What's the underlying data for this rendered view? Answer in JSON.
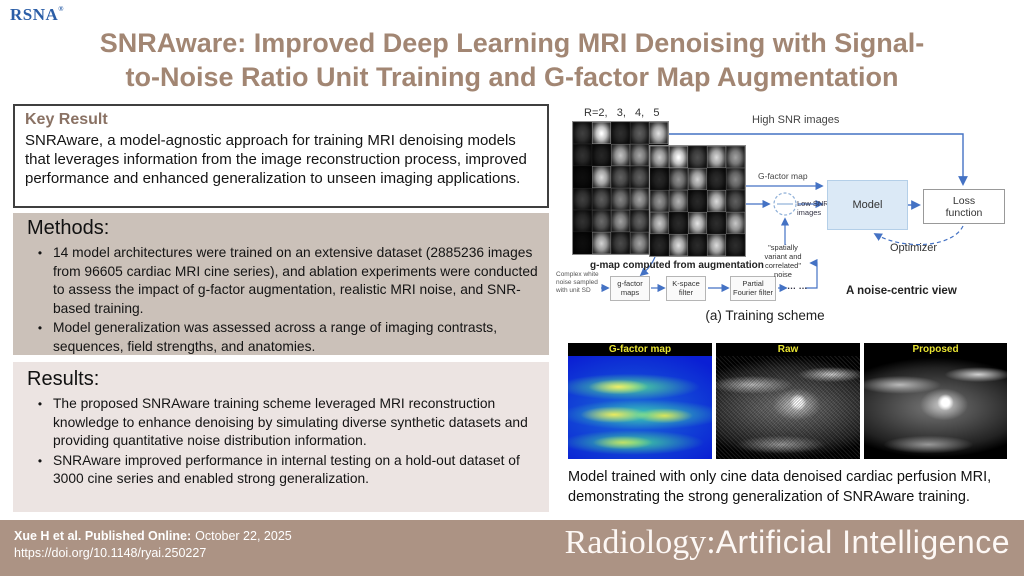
{
  "header": {
    "logo_text": "RSNA",
    "logo_reg": "®",
    "title_lines": [
      "SNRAware: Improved Deep Learning MRI Denoising with Signal-",
      "to-Noise Ratio Unit Training and G-factor Map Augmentation"
    ]
  },
  "key_result": {
    "heading": "Key Result",
    "body": "SNRAware, a model-agnostic approach for training MRI denoising models that leverages information from the image reconstruction process, improved performance and enhanced generalization to unseen imaging applications."
  },
  "methods": {
    "heading": "Methods:",
    "bullets": [
      "14 model architectures were trained on an extensive dataset (2885236 images from 96605 cardiac MRI cine series), and ablation experiments were conducted to assess the impact of g-factor augmentation, realistic MRI noise, and SNR-based training.",
      "Model generalization was assessed across a range of imaging contrasts, sequences, field strengths, and anatomies."
    ]
  },
  "results": {
    "heading": "Results:",
    "bullets": [
      "The proposed SNRAware training scheme leveraged MRI reconstruction knowledge to enhance denoising by simulating diverse synthetic datasets and providing quantitative noise distribution information.",
      "SNRAware improved performance in internal testing on a hold-out dataset of 3000 cine series and enabled strong generalization."
    ]
  },
  "diagram": {
    "r_label": "R=2,   3,   4,   5",
    "high_snr_label": "High SNR images",
    "g_factor_label": "G-factor map",
    "low_snr_label": "Low SNR images",
    "model_label": "Model",
    "loss_label": "Loss function",
    "optimizer_label": "Optimizer",
    "gmap_caption": "g-map computed from augmentation",
    "noise_source_label": "Complex white noise sampled with unit SD",
    "pipeline_boxes": [
      "g-factor maps",
      "K-space filter",
      "Partial Fourier filter"
    ],
    "dots": "… …",
    "noise_label": "\"spatially variant and correlated\" noise",
    "noise_view_label": "A noise-centric view",
    "caption": "(a) Training scheme"
  },
  "panels": {
    "titles": [
      "G-factor map",
      "Raw",
      "Proposed"
    ],
    "caption": "Model trained with only cine data denoised cardiac perfusion MRI, demonstrating the strong generalization of SNRAware training."
  },
  "footer": {
    "citation_label": "Xue H et al. Published Online:",
    "citation_date": "October 22, 2025",
    "doi": "https://doi.org/10.1148/ryai.250227",
    "journal_serif": "Radiology:",
    "journal_sans": "Artificial Intelligence"
  },
  "ui": {
    "bullet": "•"
  },
  "colors": {
    "title_brown": "#a28673",
    "key_heading_brown": "#8a7264",
    "methods_bg": "#cbc1b9",
    "results_bg": "#ece4e2",
    "footer_bg": "#ac9384",
    "rsna_blue": "#2b5ea7",
    "diagram_blue": "#4472c4",
    "panel_title_yellow": "#e8e332",
    "model_box_fill": "#dbe9f6",
    "heatmap_base_blue": "#0a1fd4"
  }
}
